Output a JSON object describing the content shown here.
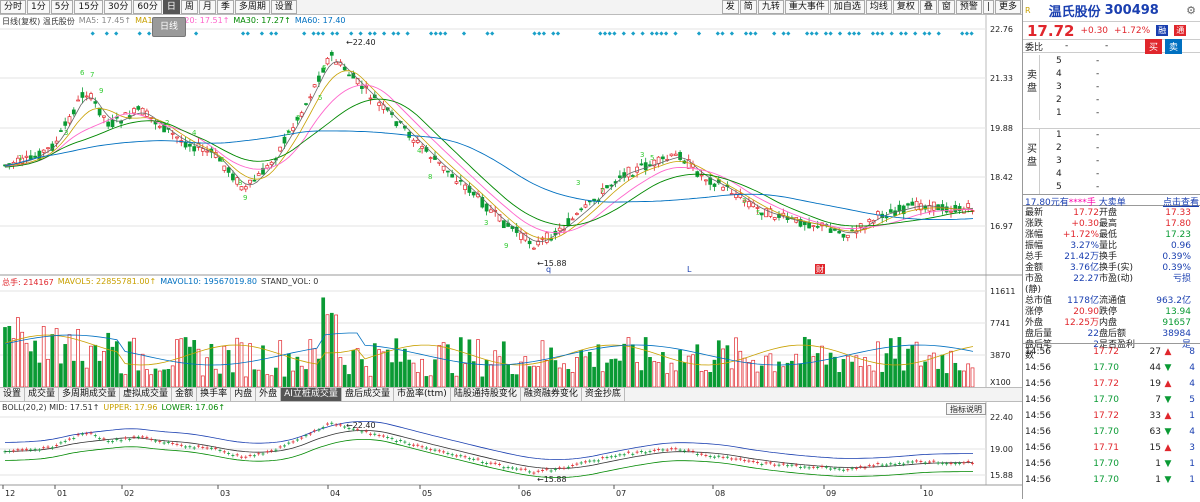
{
  "toolbar": {
    "left_items": [
      {
        "label": "分时"
      },
      {
        "label": "1分"
      },
      {
        "label": "5分"
      },
      {
        "label": "15分"
      },
      {
        "label": "30分"
      },
      {
        "label": "60分"
      },
      {
        "label": "日",
        "active": true
      },
      {
        "label": "周"
      },
      {
        "label": "月"
      },
      {
        "label": "季"
      },
      {
        "label": "多周期"
      },
      {
        "label": "设置"
      }
    ],
    "right_items": [
      {
        "label": "发"
      },
      {
        "label": "简"
      },
      {
        "label": "九转"
      },
      {
        "label": "重大事件"
      },
      {
        "label": "加自选"
      },
      {
        "label": "均线"
      },
      {
        "label": "复权"
      },
      {
        "label": "叠"
      },
      {
        "label": "窗"
      },
      {
        "label": "预警"
      },
      {
        "label": "|"
      },
      {
        "label": "更多"
      }
    ]
  },
  "tooltip": "日线",
  "main_chart": {
    "legend": [
      {
        "text": "日线(复权) 温氏股份",
        "color": "#333333"
      },
      {
        "text": "MA5: 17.45↑",
        "color": "#888888"
      },
      {
        "text": "MA10: 1",
        "color": "#c8a000"
      },
      {
        "text": "MA20: 17.51↑",
        "color": "#ff66cc"
      },
      {
        "text": "MA30: 17.27↑",
        "color": "#008800"
      },
      {
        "text": "MA60: 17.40",
        "color": "#0070c0"
      }
    ],
    "y_ticks": [
      "22.76",
      "21.33",
      "19.88",
      "18.42",
      "16.97"
    ],
    "high_label": "22.40",
    "low_label": "15.88",
    "markers": [
      "q",
      "L",
      "财"
    ]
  },
  "volume_chart": {
    "legend": [
      {
        "text": "总手: 214167",
        "color": "#e0262c"
      },
      {
        "text": "MAVOL5: 22855781.00↑",
        "color": "#c8a000"
      },
      {
        "text": "MAVOL10: 19567019.80",
        "color": "#0070c0"
      },
      {
        "text": "STAND_VOL: 0",
        "color": "#333333"
      }
    ],
    "y_ticks": [
      "11611",
      "7741",
      "3870",
      "X100"
    ]
  },
  "tabs": [
    {
      "label": "设置"
    },
    {
      "label": "成交量"
    },
    {
      "label": "多周期成交量"
    },
    {
      "label": "虚拟成交量"
    },
    {
      "label": "金额"
    },
    {
      "label": "换手率"
    },
    {
      "label": "内盘"
    },
    {
      "label": "外盘"
    },
    {
      "label": "AI立桩成交量",
      "active": true
    },
    {
      "label": "盘后成交量"
    },
    {
      "label": "市盈率(ttm)"
    },
    {
      "label": "陆股通持股变化"
    },
    {
      "label": "融资融券变化"
    },
    {
      "label": "资金抄底"
    }
  ],
  "boll_chart": {
    "legend": [
      {
        "text": "BOLL(20,2) MID: 17.51↑",
        "color": "#333333"
      },
      {
        "text": "UPPER: 17.96",
        "color": "#c8a000"
      },
      {
        "text": "LOWER: 17.06↑",
        "color": "#008800"
      }
    ],
    "button": "指标说明",
    "y_ticks": [
      "22.40",
      "19.00",
      "15.88"
    ],
    "high_label": "22.40",
    "low_label": "15.88"
  },
  "x_axis": [
    "12",
    "01",
    "02",
    "03",
    "04",
    "05",
    "06",
    "07",
    "08",
    "09",
    "10"
  ],
  "side": {
    "name": "温氏股份",
    "code": "300498",
    "price": "17.72",
    "change": "+0.30",
    "change_pct": "+1.72%",
    "badges": [
      "融",
      "通"
    ],
    "ratio_label": "委比",
    "ratio_values": [
      "-",
      "-"
    ],
    "buy_btn": "买",
    "sell_btn": "卖",
    "sell_label": "卖盘",
    "buy_label": "买盘",
    "levels": [
      "5",
      "4",
      "3",
      "2",
      "1",
      "1",
      "2",
      "3",
      "4",
      "5"
    ],
    "level_dash": "-",
    "order_bar": {
      "left": "17.80元有",
      "mid": "****手",
      "right": "大卖单",
      "link": "点击查看"
    },
    "quote": [
      [
        "最新",
        "17.72",
        "开盘",
        "17.33"
      ],
      [
        "涨跌",
        "+0.30",
        "最高",
        "17.80"
      ],
      [
        "涨幅",
        "+1.72%",
        "最低",
        "17.23"
      ],
      [
        "振幅",
        "3.27%",
        "量比",
        "0.96"
      ],
      [
        "总手",
        "21.42万",
        "换手",
        "0.39%"
      ],
      [
        "金额",
        "3.76亿",
        "换手(实)",
        "0.39%"
      ],
      [
        "市盈(静)",
        "22.27",
        "市盈(动)",
        "亏损"
      ],
      [
        "总市值",
        "1178亿",
        "流通值",
        "963.2亿"
      ],
      [
        "涨停",
        "20.90",
        "跌停",
        "13.94"
      ],
      [
        "外盘",
        "12.25万",
        "内盘",
        "91657"
      ],
      [
        "盘后量",
        "22",
        "盘后额",
        "38984"
      ],
      [
        "盘后笔数",
        "2",
        "是否盈利",
        "是"
      ]
    ],
    "ticks": [
      {
        "time": "14:56",
        "price": "17.72",
        "vol": "27",
        "dir": "up",
        "n": "8"
      },
      {
        "time": "14:56",
        "price": "17.70",
        "vol": "44",
        "dir": "down",
        "n": "4"
      },
      {
        "time": "14:56",
        "price": "17.72",
        "vol": "19",
        "dir": "up",
        "n": "4"
      },
      {
        "time": "14:56",
        "price": "17.70",
        "vol": "7",
        "dir": "down",
        "n": "5"
      },
      {
        "time": "14:56",
        "price": "17.72",
        "vol": "33",
        "dir": "up",
        "n": "1"
      },
      {
        "time": "14:56",
        "price": "17.70",
        "vol": "63",
        "dir": "down",
        "n": "4"
      },
      {
        "time": "14:56",
        "price": "17.71",
        "vol": "15",
        "dir": "up",
        "n": "3"
      },
      {
        "time": "14:56",
        "price": "17.70",
        "vol": "1",
        "dir": "down",
        "n": "1"
      },
      {
        "time": "14:56",
        "price": "17.70",
        "vol": "1",
        "dir": "down",
        "n": "1"
      }
    ]
  },
  "colors": {
    "up": "#e0262c",
    "down": "#0a9a34",
    "accent": "#1a3fb0"
  }
}
